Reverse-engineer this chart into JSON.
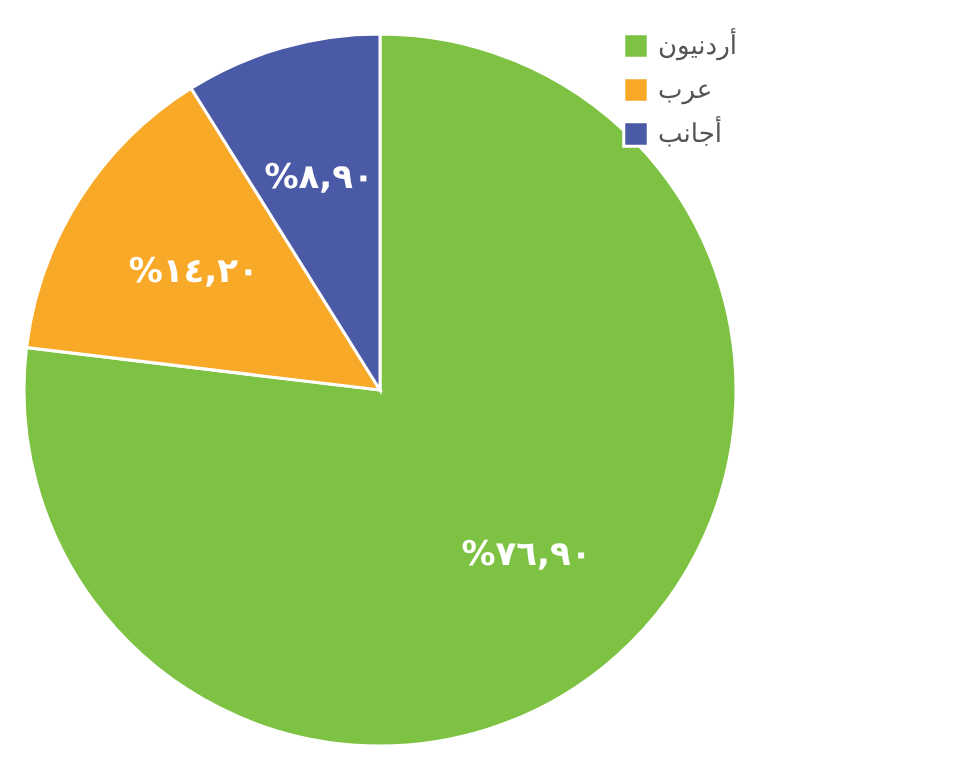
{
  "chart_data": {
    "type": "pie",
    "categories": [
      "أردنيون",
      "عرب",
      "أجانب"
    ],
    "values": [
      76.9,
      14.2,
      8.9
    ],
    "colors": [
      "#7dc242",
      "#f9a928",
      "#4b5aa7"
    ],
    "value_labels": [
      "%٧٦,٩٠",
      "%١٤,٢٠",
      "%٨,٩٠"
    ],
    "legend": "top right"
  }
}
